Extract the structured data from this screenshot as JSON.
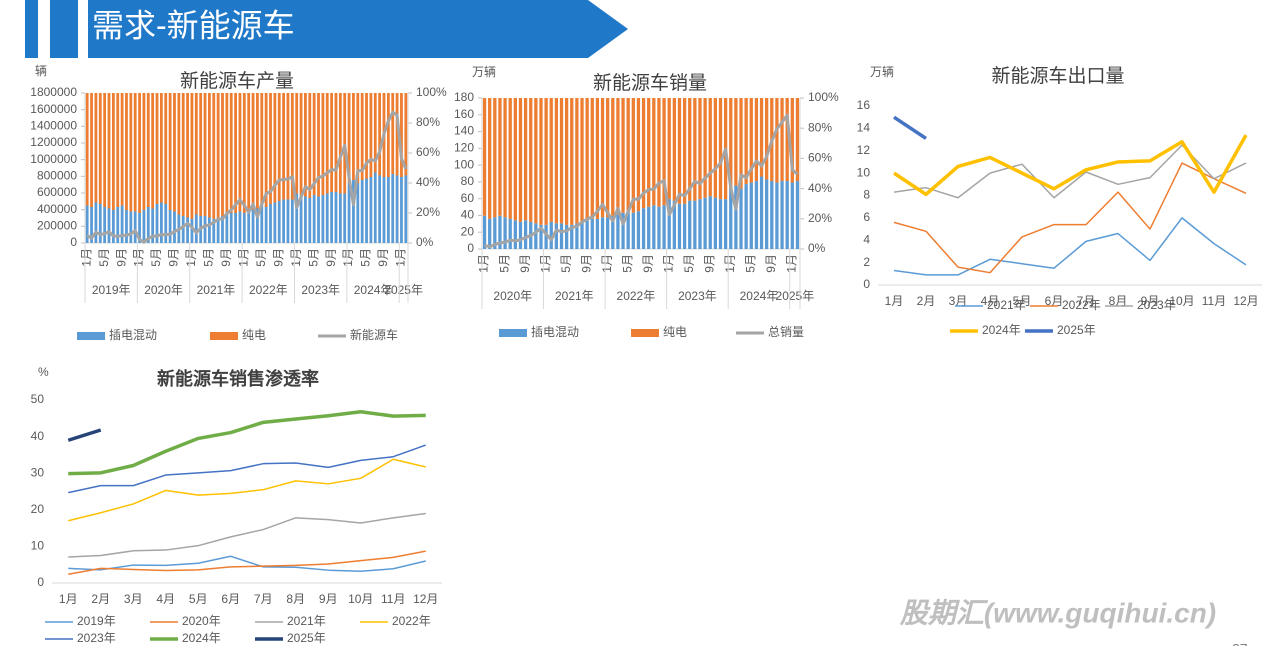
{
  "header": {
    "title": "需求-新能源车"
  },
  "watermark": "股期汇(www.guqihui.cn)",
  "page_number": "27",
  "chart_data": [
    {
      "type": "combo",
      "title": "新能源车产量",
      "y_unit": "辆",
      "stacked": true,
      "categories": [
        "1月",
        null,
        null,
        null,
        "5月",
        null,
        null,
        null,
        "9月",
        null,
        null,
        null,
        "1月",
        null,
        null,
        null,
        "5月",
        null,
        null,
        null,
        "9月",
        null,
        null,
        null,
        "1月",
        null,
        null,
        null,
        "5月",
        null,
        null,
        null,
        "9月",
        null,
        null,
        null,
        "1月",
        null,
        null,
        null,
        "5月",
        null,
        null,
        null,
        "9月",
        null,
        null,
        null,
        "1月",
        null,
        null,
        null,
        "5月",
        null,
        null,
        null,
        "9月",
        null,
        null,
        null,
        "1月",
        null,
        null,
        null,
        "5月",
        null,
        null,
        null,
        "9月",
        null,
        null,
        null,
        "1月",
        null
      ],
      "x_groups": [
        "2019年",
        "2020年",
        "2021年",
        "2022年",
        "2023年",
        "2024年",
        "2025年"
      ],
      "ylim": [
        0,
        1800000
      ],
      "yticks": [
        0,
        200000,
        400000,
        600000,
        800000,
        1000000,
        1200000,
        1400000,
        1600000,
        1800000
      ],
      "y2lim": [
        0,
        100
      ],
      "y2ticks": [
        {
          "value": 0,
          "label": "0%"
        },
        {
          "value": 20,
          "label": "20%"
        },
        {
          "value": 40,
          "label": "40%"
        },
        {
          "value": 60,
          "label": "60%"
        },
        {
          "value": 80,
          "label": "80%"
        },
        {
          "value": 100,
          "label": "100%"
        }
      ],
      "series": [
        {
          "name": "插电混动",
          "color": "#5b9bd5",
          "kind": "bar",
          "axis": "y2",
          "values": [
            25,
            24,
            27,
            26,
            24,
            23,
            22,
            24,
            25,
            22,
            21,
            21,
            20,
            22,
            24,
            23,
            26,
            27,
            26,
            22,
            21,
            19,
            18,
            17,
            16,
            19,
            18,
            18,
            17,
            16,
            17,
            18,
            19,
            20,
            20,
            21,
            20,
            21,
            22,
            23,
            25,
            24,
            26,
            27,
            28,
            29,
            29,
            29,
            33,
            32,
            31,
            30,
            32,
            31,
            32,
            33,
            34,
            34,
            33,
            33,
            40,
            42,
            40,
            42,
            43,
            44,
            47,
            45,
            44,
            44,
            46,
            45,
            44,
            45
          ]
        },
        {
          "name": "纯电",
          "color": "#ed7d31",
          "kind": "bar",
          "axis": "y2",
          "values": [
            75,
            76,
            73,
            74,
            76,
            77,
            78,
            76,
            75,
            78,
            79,
            79,
            80,
            78,
            76,
            77,
            74,
            73,
            74,
            78,
            79,
            81,
            82,
            83,
            84,
            81,
            82,
            82,
            83,
            84,
            83,
            82,
            81,
            80,
            80,
            79,
            80,
            79,
            78,
            77,
            75,
            76,
            74,
            73,
            72,
            71,
            71,
            71,
            67,
            68,
            69,
            70,
            68,
            69,
            68,
            67,
            66,
            66,
            67,
            67,
            60,
            58,
            60,
            58,
            57,
            56,
            53,
            55,
            56,
            56,
            54,
            55,
            56,
            55
          ]
        },
        {
          "name": "新能源车",
          "color": "#a5a5a5",
          "kind": "line",
          "line_width": 3,
          "values": [
            91000,
            59000,
            128000,
            102000,
            112000,
            134000,
            84000,
            80000,
            89000,
            95000,
            107000,
            149000,
            42000,
            10000,
            53000,
            81000,
            84000,
            102000,
            100000,
            106000,
            136000,
            164000,
            198000,
            235000,
            190000,
            124000,
            177000,
            205000,
            218000,
            248000,
            284000,
            289000,
            353000,
            397000,
            457000,
            519000,
            452000,
            368000,
            465000,
            312000,
            466000,
            590000,
            617000,
            692000,
            755000,
            762000,
            768000,
            794000,
            425000,
            552000,
            675000,
            640000,
            713000,
            784000,
            805000,
            843000,
            879000,
            876000,
            1028000,
            1172000,
            787000,
            460000,
            868000,
            870000,
            958000,
            1004000,
            984000,
            1093000,
            1310000,
            1462000,
            1568000,
            1535000,
            1015000,
            888000
          ]
        }
      ]
    },
    {
      "type": "combo",
      "title": "新能源车销量",
      "y_unit": "万辆",
      "stacked": true,
      "categories": [
        "1月",
        null,
        null,
        null,
        "5月",
        null,
        null,
        null,
        "9月",
        null,
        null,
        null,
        "1月",
        null,
        null,
        null,
        "5月",
        null,
        null,
        null,
        "9月",
        null,
        null,
        null,
        "1月",
        null,
        null,
        null,
        "5月",
        null,
        null,
        null,
        "9月",
        null,
        null,
        null,
        "1月",
        null,
        null,
        null,
        "5月",
        null,
        null,
        null,
        "9月",
        null,
        null,
        null,
        "1月",
        null,
        null,
        null,
        "5月",
        null,
        null,
        null,
        "9月",
        null,
        null,
        null,
        "1月",
        null
      ],
      "x_groups": [
        "2020年",
        "2021年",
        "2022年",
        "2023年",
        "2024年",
        "2025年"
      ],
      "ylim": [
        0,
        180
      ],
      "yticks": [
        0,
        20,
        40,
        60,
        80,
        100,
        120,
        140,
        160,
        180
      ],
      "y2lim": [
        0,
        100
      ],
      "y2ticks": [
        {
          "value": 0,
          "label": "0%"
        },
        {
          "value": 20,
          "label": "20%"
        },
        {
          "value": 40,
          "label": "40%"
        },
        {
          "value": 60,
          "label": "60%"
        },
        {
          "value": 80,
          "label": "80%"
        },
        {
          "value": 100,
          "label": "100%"
        }
      ],
      "series": [
        {
          "name": "插电混动",
          "color": "#5b9bd5",
          "kind": "bar",
          "axis": "y2",
          "values": [
            22,
            20,
            21,
            22,
            21,
            20,
            19,
            18,
            19,
            18,
            17,
            16,
            16,
            18,
            17,
            17,
            16,
            16,
            17,
            18,
            19,
            20,
            20,
            21,
            21,
            22,
            23,
            24,
            24,
            24,
            25,
            27,
            28,
            29,
            28,
            29,
            33,
            32,
            30,
            30,
            32,
            32,
            33,
            34,
            35,
            34,
            33,
            33,
            40,
            42,
            40,
            43,
            44,
            45,
            48,
            46,
            45,
            44,
            45,
            45,
            44,
            45
          ]
        },
        {
          "name": "纯电",
          "color": "#ed7d31",
          "kind": "bar",
          "axis": "y2",
          "values": [
            78,
            80,
            79,
            78,
            79,
            80,
            81,
            82,
            81,
            82,
            83,
            84,
            84,
            82,
            83,
            83,
            84,
            84,
            83,
            82,
            81,
            80,
            80,
            79,
            79,
            78,
            77,
            76,
            76,
            76,
            75,
            73,
            72,
            71,
            72,
            71,
            67,
            68,
            70,
            70,
            68,
            68,
            67,
            66,
            65,
            66,
            67,
            67,
            60,
            58,
            60,
            57,
            56,
            55,
            52,
            54,
            55,
            56,
            55,
            55,
            56,
            55
          ]
        },
        {
          "name": "总销量",
          "color": "#a5a5a5",
          "kind": "line",
          "line_width": 3,
          "values": [
            4.4,
            2.6,
            5.3,
            7.2,
            8.2,
            10.4,
            9.8,
            10.9,
            13.8,
            16.0,
            20.0,
            24.8,
            17.9,
            11.0,
            22.6,
            20.6,
            21.7,
            25.6,
            27.1,
            32.1,
            35.7,
            38.3,
            45.0,
            53.1,
            43.1,
            33.4,
            48.4,
            29.9,
            44.7,
            59.6,
            59.3,
            66.6,
            70.8,
            71.4,
            78.6,
            81.4,
            40.8,
            52.5,
            65.3,
            63.6,
            71.7,
            80.6,
            78.0,
            84.6,
            90.4,
            95.6,
            102.6,
            119.1,
            72.9,
            47.7,
            88.3,
            85.0,
            95.5,
            104.9,
            99.1,
            110.0,
            128.7,
            143.0,
            151.2,
            159.5,
            94.4,
            89.2
          ]
        }
      ]
    },
    {
      "type": "line",
      "title": "新能源车出口量",
      "y_unit": "万辆",
      "categories": [
        "1月",
        "2月",
        "3月",
        "4月",
        "5月",
        "6月",
        "7月",
        "8月",
        "9月",
        "10月",
        "11月",
        "12月"
      ],
      "ylim": [
        0,
        16
      ],
      "yticks": [
        0,
        2,
        4,
        6,
        8,
        10,
        12,
        14,
        16
      ],
      "series": [
        {
          "name": "2021年",
          "color": "#5b9bd5",
          "values": [
            1.3,
            0.9,
            0.9,
            2.3,
            1.9,
            1.5,
            3.9,
            4.6,
            2.2,
            6.0,
            3.7,
            1.8
          ]
        },
        {
          "name": "2022年",
          "color": "#ed7d31",
          "values": [
            5.6,
            4.8,
            1.6,
            1.1,
            4.3,
            5.4,
            5.4,
            8.3,
            5.0,
            10.9,
            9.5,
            8.2
          ]
        },
        {
          "name": "2023年",
          "color": "#a5a5a5",
          "values": [
            8.3,
            8.7,
            7.8,
            10.0,
            10.8,
            7.8,
            10.1,
            9.0,
            9.6,
            12.5,
            9.5,
            10.9
          ]
        },
        {
          "name": "2024年",
          "color": "#ffc000",
          "line_width": 3.5,
          "values": [
            10.0,
            8.1,
            10.6,
            11.4,
            10.0,
            8.6,
            10.3,
            11.0,
            11.1,
            12.8,
            8.3,
            13.4
          ]
        },
        {
          "name": "2025年",
          "color": "#4472c4",
          "line_width": 3.5,
          "values": [
            15.0,
            13.1,
            null,
            null,
            null,
            null,
            null,
            null,
            null,
            null,
            null,
            null
          ]
        }
      ]
    },
    {
      "type": "line",
      "title": "新能源车销售渗透率",
      "y_unit": "%",
      "categories": [
        "1月",
        "2月",
        "3月",
        "4月",
        "5月",
        "6月",
        "7月",
        "8月",
        "9月",
        "10月",
        "11月",
        "12月"
      ],
      "ylim": [
        0,
        50
      ],
      "yticks": [
        0,
        10,
        20,
        30,
        40,
        50
      ],
      "series": [
        {
          "name": "2019年",
          "color": "#5b9bd5",
          "values": [
            4.0,
            3.6,
            4.9,
            4.8,
            5.4,
            7.3,
            4.4,
            4.3,
            3.5,
            3.2,
            3.9,
            6.0
          ]
        },
        {
          "name": "2020年",
          "color": "#ed7d31",
          "values": [
            2.4,
            4.0,
            3.7,
            3.4,
            3.6,
            4.4,
            4.6,
            4.8,
            5.2,
            6.1,
            7.0,
            8.7
          ]
        },
        {
          "name": "2021年",
          "color": "#a5a5a5",
          "values": [
            7.1,
            7.5,
            8.8,
            9.0,
            10.2,
            12.6,
            14.6,
            17.8,
            17.3,
            16.4,
            17.8,
            19.0
          ]
        },
        {
          "name": "2022年",
          "color": "#ffc000",
          "values": [
            17.0,
            19.2,
            21.6,
            25.3,
            24.0,
            24.5,
            25.5,
            27.9,
            27.1,
            28.6,
            33.8,
            31.7
          ]
        },
        {
          "name": "2023年",
          "color": "#4472c4",
          "values": [
            24.7,
            26.6,
            26.6,
            29.5,
            30.1,
            30.7,
            32.6,
            32.8,
            31.6,
            33.5,
            34.5,
            37.7
          ]
        },
        {
          "name": "2024年",
          "color": "#70ad47",
          "line_width": 3.5,
          "values": [
            29.9,
            30.1,
            32.1,
            36.0,
            39.5,
            41.1,
            43.9,
            44.8,
            45.7,
            46.8,
            45.6,
            45.8
          ]
        },
        {
          "name": "2025年",
          "color": "#264478",
          "line_width": 3.5,
          "values": [
            39.0,
            41.8,
            null,
            null,
            null,
            null,
            null,
            null,
            null,
            null,
            null,
            null
          ]
        }
      ]
    }
  ]
}
